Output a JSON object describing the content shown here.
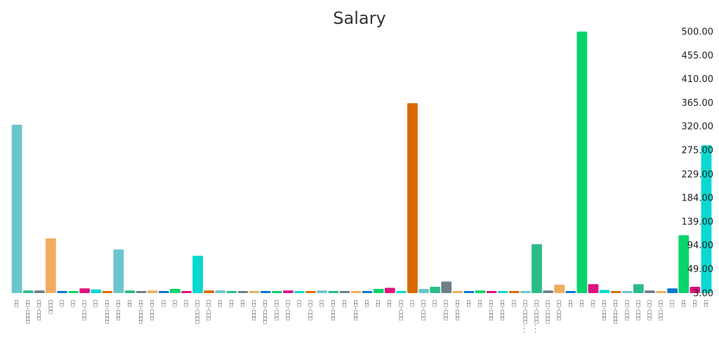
{
  "chart_data": {
    "type": "bar",
    "title": "Salary",
    "xlabel": "",
    "ylabel": "",
    "ylim": [
      3,
      500
    ],
    "y_axis_position": "right",
    "grid": false,
    "legend": "none",
    "y_ticks": [
      "3.00",
      "49.00",
      "94.00",
      "139.00",
      "184.00",
      "229.00",
      "275.00",
      "320.00",
      "365.00",
      "410.00",
      "455.00",
      "500.00"
    ],
    "categories": [
      "□□",
      "□□-□□□□",
      "□□-□□□",
      "□□□□",
      "□□",
      "□□",
      "□□-□□□",
      "□□",
      "□□-□□□□",
      "□□-□□□",
      "□□",
      "□□-□□□□",
      "□□-□□□",
      "□□",
      "□□",
      "□□",
      "□□-□□□□",
      "□□-□□□",
      "□□",
      "□□",
      "□□",
      "□□-□□□",
      "□□-□□□□",
      "□□-□□□",
      "□□-□□□",
      "□□",
      "□□-□□□",
      "□□",
      "□□-□□□",
      "□□",
      "□□-□□□",
      "□□",
      "□□",
      "□□",
      "□□-□□□",
      "□□",
      "□□-□□□",
      "□□",
      "□□-□□□",
      "□□-□□□",
      "□□",
      "□□",
      "□□-□□□",
      "□□-□□□",
      "□□",
      "□□-□□□□...",
      "□□-□□□□...",
      "□□-□□□□",
      "□□-□□□",
      "□□",
      "□□",
      "□□",
      "□□-□□□",
      "□□-□□□□",
      "□□-□□□",
      "□□-□□□",
      "□□-□□□",
      "□□-□□□",
      "□□",
      "□□",
      "□□",
      "□□"
    ],
    "values": [
      323,
      8,
      8,
      107,
      6,
      6,
      12,
      10,
      5,
      86,
      8,
      6,
      8,
      5,
      11,
      6,
      74,
      8,
      8,
      7,
      5,
      6,
      6,
      6,
      8,
      6,
      6,
      8,
      5,
      7,
      5,
      6,
      11,
      13,
      5,
      364,
      11,
      15,
      25,
      6,
      6,
      8,
      5,
      7,
      6,
      6,
      96,
      8,
      19,
      5,
      500,
      20,
      9,
      6,
      5,
      20,
      8,
      5,
      12,
      113,
      15,
      284
    ],
    "colors": [
      "#6cc5cd",
      "#2abc87",
      "#6f7f8a",
      "#f0ad5d",
      "#0a76d1",
      "#09d46b",
      "#e0127f",
      "#09d9d1",
      "#d96a00",
      "#6cc5cd",
      "#2abc87",
      "#6f7f8a",
      "#f0ad5d",
      "#0a76d1",
      "#09d46b",
      "#e0127f",
      "#09d9d1",
      "#d96a00",
      "#6cc5cd",
      "#2abc87",
      "#6f7f8a",
      "#f0ad5d",
      "#0a76d1",
      "#09d46b",
      "#e0127f",
      "#09d9d1",
      "#d96a00",
      "#6cc5cd",
      "#2abc87",
      "#6f7f8a",
      "#f0ad5d",
      "#0a76d1",
      "#09d46b",
      "#e0127f",
      "#09d9d1",
      "#d96a00",
      "#6cc5cd",
      "#2abc87",
      "#6f7f8a",
      "#f0ad5d",
      "#0a76d1",
      "#09d46b",
      "#e0127f",
      "#09d9d1",
      "#d96a00",
      "#6cc5cd",
      "#2abc87",
      "#6f7f8a",
      "#f0ad5d",
      "#0a76d1",
      "#09d46b",
      "#e0127f",
      "#09d9d1",
      "#d96a00",
      "#6cc5cd",
      "#2abc87",
      "#6f7f8a",
      "#f0ad5d",
      "#0a76d1",
      "#09d46b",
      "#e0127f",
      "#09d9d1"
    ]
  }
}
